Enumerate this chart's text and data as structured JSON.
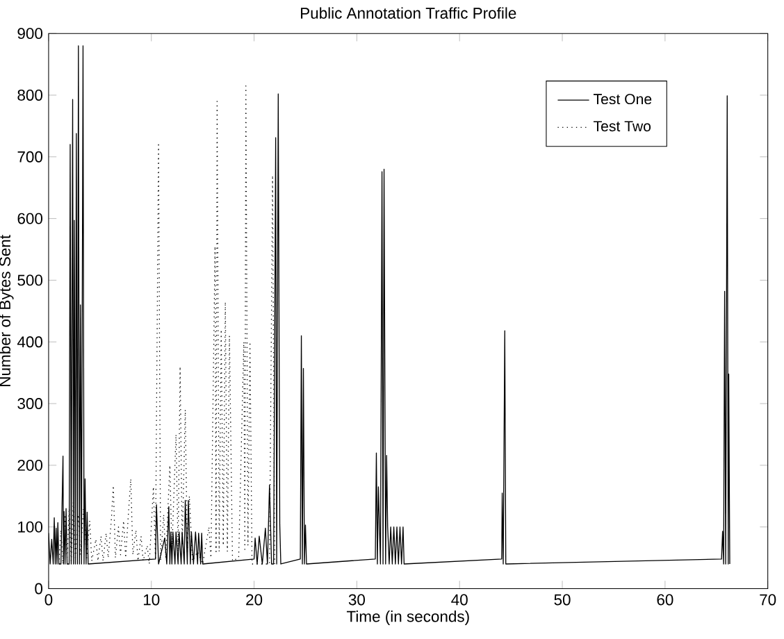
{
  "chart_data": {
    "type": "line",
    "title": "Public Annotation Traffic Profile",
    "xlabel": "Time (in seconds)",
    "ylabel": "Number of Bytes Sent",
    "xlim": [
      0,
      70
    ],
    "ylim": [
      0,
      900
    ],
    "xticks": [
      0,
      10,
      20,
      30,
      40,
      50,
      60,
      70
    ],
    "yticks": [
      0,
      100,
      200,
      300,
      400,
      500,
      600,
      700,
      800,
      900
    ],
    "legend": "top right",
    "marker": "none",
    "series": [
      {
        "name": "Test One",
        "color": "#000000",
        "line_style": "solid",
        "x": [
          0,
          0.15,
          0.3,
          0.45,
          0.55,
          0.65,
          0.73,
          0.82,
          0.9,
          1.0,
          1.2,
          1.4,
          1.45,
          1.5,
          1.6,
          1.7,
          1.8,
          2.0,
          2.1,
          2.2,
          2.34,
          2.42,
          2.5,
          2.6,
          2.7,
          2.8,
          2.9,
          3.0,
          3.1,
          3.2,
          3.35,
          3.45,
          3.55,
          3.65,
          3.75,
          3.85,
          10.4,
          10.5,
          10.7,
          11.3,
          11.5,
          11.7,
          11.8,
          11.9,
          12.0,
          12.1,
          12.3,
          12.4,
          12.6,
          12.7,
          12.9,
          13.0,
          13.2,
          13.3,
          13.5,
          13.6,
          13.8,
          13.9,
          14.1,
          14.3,
          14.5,
          14.6,
          14.8,
          14.9,
          15.0,
          20.0,
          20.1,
          20.3,
          20.5,
          20.8,
          21.1,
          21.3,
          21.5,
          21.7,
          21.9,
          22.1,
          22.2,
          22.35,
          22.5,
          22.6,
          24.5,
          24.6,
          24.7,
          24.8,
          24.9,
          25.0,
          25.1,
          31.8,
          31.9,
          32.0,
          32.1,
          32.3,
          32.45,
          32.55,
          32.65,
          32.8,
          32.9,
          33.0,
          33.15,
          33.3,
          33.45,
          33.6,
          33.75,
          33.9,
          34.05,
          34.2,
          34.35,
          34.5,
          34.6,
          44.1,
          44.15,
          44.2,
          44.25,
          44.4,
          44.5,
          65.5,
          65.6,
          65.7,
          65.8,
          65.9,
          66.05,
          66.15,
          66.2,
          66.3
        ],
        "values": [
          90,
          40,
          80,
          40,
          115,
          40,
          98,
          40,
          107,
          40,
          40,
          215,
          40,
          125,
          40,
          130,
          40,
          40,
          720,
          40,
          793,
          40,
          597,
          40,
          738,
          40,
          880,
          40,
          460,
          40,
          880,
          40,
          178,
          40,
          124,
          40,
          48,
          136,
          40,
          82,
          40,
          133,
          40,
          92,
          40,
          92,
          40,
          92,
          40,
          92,
          40,
          92,
          40,
          143,
          40,
          143,
          40,
          92,
          40,
          92,
          40,
          90,
          40,
          90,
          40,
          48,
          82,
          40,
          85,
          40,
          98,
          40,
          168,
          40,
          40,
          731,
          40,
          802,
          104,
          40,
          48,
          410,
          40,
          357,
          40,
          103,
          40,
          48,
          220,
          40,
          165,
          40,
          676,
          40,
          680,
          40,
          216,
          100,
          40,
          100,
          40,
          100,
          40,
          100,
          40,
          100,
          40,
          100,
          40,
          48,
          155,
          95,
          40,
          418,
          40,
          48,
          93,
          40,
          482,
          40,
          799,
          40,
          348,
          40
        ]
      },
      {
        "name": "Test Two",
        "color": "#000000",
        "line_style": "dotted",
        "x": [
          1.0,
          1.2,
          1.4,
          1.6,
          1.8,
          2.0,
          2.2,
          2.4,
          2.6,
          2.9,
          3.1,
          3.4,
          3.7,
          4.0,
          4.2,
          4.6,
          4.8,
          5.1,
          5.3,
          5.6,
          5.8,
          6.1,
          6.3,
          6.5,
          6.8,
          7.0,
          7.3,
          7.5,
          7.8,
          8.0,
          8.2,
          8.5,
          8.7,
          9.0,
          9.2,
          9.6,
          9.8,
          10.2,
          10.4,
          10.7,
          10.9,
          11.2,
          11.4,
          11.8,
          12.0,
          12.4,
          12.6,
          12.8,
          13.0,
          13.3,
          13.5,
          13.7,
          14.0,
          14.5,
          15.0,
          15.6,
          15.8,
          16.0,
          16.2,
          16.3,
          16.4,
          16.6,
          16.8,
          17.0,
          17.2,
          17.4,
          17.6,
          17.9,
          18.5,
          19.0,
          19.1,
          19.2,
          19.4,
          19.6,
          19.8,
          21.5,
          21.8,
          22.0
        ],
        "values": [
          40,
          95,
          40,
          120,
          50,
          130,
          45,
          140,
          50,
          120,
          55,
          130,
          50,
          110,
          45,
          80,
          45,
          85,
          45,
          90,
          50,
          110,
          167,
          50,
          100,
          55,
          110,
          50,
          130,
          178,
          55,
          95,
          45,
          85,
          45,
          70,
          40,
          165,
          50,
          723,
          45,
          120,
          50,
          200,
          60,
          250,
          60,
          360,
          70,
          290,
          60,
          150,
          45,
          60,
          40,
          100,
          50,
          300,
          555,
          60,
          790,
          60,
          420,
          70,
          465,
          60,
          410,
          45,
          50,
          400,
          60,
          815,
          70,
          400,
          40,
          40,
          670,
          40
        ]
      }
    ]
  }
}
